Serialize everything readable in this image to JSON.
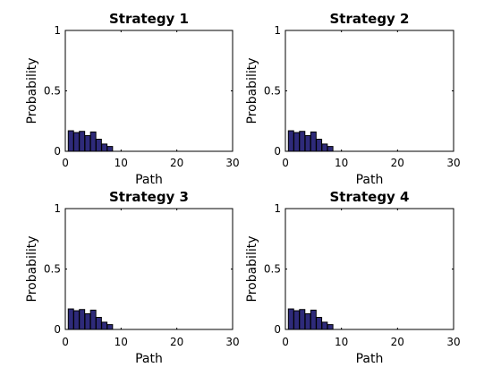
{
  "chart_data": [
    {
      "type": "bar",
      "title": "Strategy 1",
      "xlabel": "Path",
      "ylabel": "Probability",
      "xlim": [
        0,
        30
      ],
      "ylim": [
        0,
        1
      ],
      "xticks": [
        "0",
        "10",
        "20",
        "30"
      ],
      "yticks": [
        "0",
        "0.5",
        "1"
      ],
      "x": [
        1,
        2,
        3,
        4,
        5,
        6,
        7,
        8
      ],
      "values": [
        0.17,
        0.155,
        0.165,
        0.13,
        0.16,
        0.1,
        0.06,
        0.04
      ],
      "bar_color": "#2e2a7a"
    },
    {
      "type": "bar",
      "title": "Strategy 2",
      "xlabel": "Path",
      "ylabel": "Probability",
      "xlim": [
        0,
        30
      ],
      "ylim": [
        0,
        1
      ],
      "xticks": [
        "0",
        "10",
        "20",
        "30"
      ],
      "yticks": [
        "0",
        "0.5",
        "1"
      ],
      "x": [
        1,
        2,
        3,
        4,
        5,
        6,
        7,
        8
      ],
      "values": [
        0.17,
        0.155,
        0.165,
        0.13,
        0.16,
        0.1,
        0.06,
        0.04
      ],
      "bar_color": "#2e2a7a"
    },
    {
      "type": "bar",
      "title": "Strategy 3",
      "xlabel": "Path",
      "ylabel": "Probability",
      "xlim": [
        0,
        30
      ],
      "ylim": [
        0,
        1
      ],
      "xticks": [
        "0",
        "10",
        "20",
        "30"
      ],
      "yticks": [
        "0",
        "0.5",
        "1"
      ],
      "x": [
        1,
        2,
        3,
        4,
        5,
        6,
        7,
        8
      ],
      "values": [
        0.17,
        0.155,
        0.165,
        0.13,
        0.16,
        0.1,
        0.06,
        0.04
      ],
      "bar_color": "#2e2a7a"
    },
    {
      "type": "bar",
      "title": "Strategy 4",
      "xlabel": "Path",
      "ylabel": "Probability",
      "xlim": [
        0,
        30
      ],
      "ylim": [
        0,
        1
      ],
      "xticks": [
        "0",
        "10",
        "20",
        "30"
      ],
      "yticks": [
        "0",
        "0.5",
        "1"
      ],
      "x": [
        1,
        2,
        3,
        4,
        5,
        6,
        7,
        8
      ],
      "values": [
        0.17,
        0.155,
        0.165,
        0.13,
        0.16,
        0.1,
        0.06,
        0.04
      ],
      "bar_color": "#2e2a7a"
    }
  ]
}
